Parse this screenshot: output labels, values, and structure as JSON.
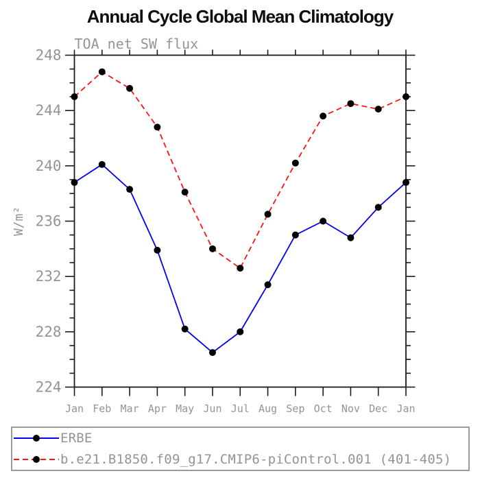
{
  "window": {
    "background": "#ffffff"
  },
  "chart_data": {
    "type": "line",
    "title": "Annual Cycle Global Mean Climatology",
    "subtitle": "TOA net SW flux",
    "xlabel": "",
    "ylabel": "W/m²",
    "categories": [
      "Jan",
      "Feb",
      "Mar",
      "Apr",
      "May",
      "Jun",
      "Jul",
      "Aug",
      "Sep",
      "Oct",
      "Nov",
      "Dec",
      "Jan"
    ],
    "ylim": [
      224,
      248
    ],
    "ytick_labels": [
      224,
      228,
      232,
      236,
      240,
      244,
      248
    ],
    "ytick_minor_step": 1,
    "grid": false,
    "legend_position": "bottom",
    "series": [
      {
        "name": "ERBE",
        "style": "solid",
        "color": "#0000f0",
        "marker": "circle",
        "marker_color": "#000000",
        "values": [
          238.8,
          240.1,
          238.3,
          233.9,
          228.2,
          226.5,
          228.0,
          231.4,
          235.0,
          236.0,
          234.8,
          237.0,
          238.8
        ]
      },
      {
        "name": "b.e21.B1850.f09_g17.CMIP6-piControl.001 (401-405)",
        "style": "dashed",
        "color": "#fb1414",
        "marker": "circle",
        "marker_color": "#000000",
        "values": [
          245.0,
          246.8,
          245.6,
          242.8,
          238.1,
          234.0,
          232.6,
          236.5,
          240.2,
          243.6,
          244.5,
          244.1,
          245.0
        ]
      }
    ]
  },
  "colors": {
    "axis": "#1a1a1a",
    "label_gray": "#949494",
    "marker": "#000000",
    "legend_border": "#9a9a9a",
    "title_text": "#0d0d0d",
    "background": "#ffffff"
  }
}
